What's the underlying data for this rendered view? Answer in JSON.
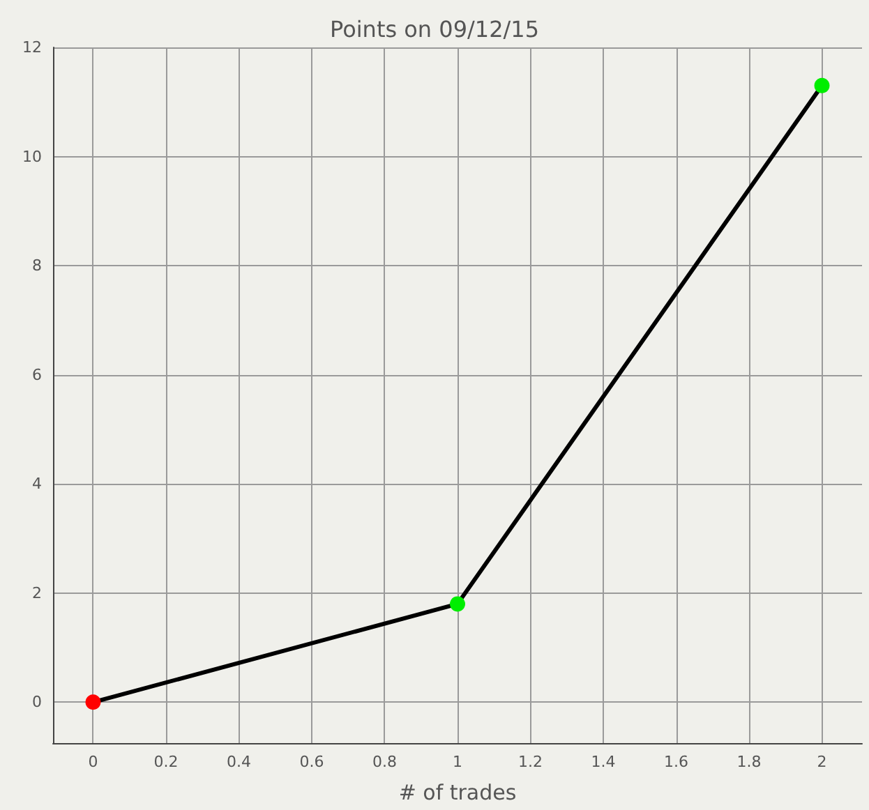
{
  "chart_data": {
    "type": "line",
    "title": "Points on 09/12/15",
    "xlabel": "# of trades",
    "x": [
      0,
      1,
      2
    ],
    "series": [
      {
        "color": "#000000",
        "colors": [
          "#ff0000",
          "#00ee00",
          "#00ee00"
        ],
        "values": [
          0,
          1.8,
          11.3
        ]
      }
    ],
    "xlim": [
      -0.11,
      2.11
    ],
    "xticks": [
      0,
      0.2,
      0.4,
      0.6,
      0.8,
      1,
      1.2,
      1.4,
      1.6,
      1.8,
      2
    ],
    "ylim": [
      -0.75,
      12
    ],
    "yticks": [
      0,
      2,
      4,
      6,
      8,
      10,
      12
    ],
    "grid": true,
    "marker": "circle",
    "line_style": "solid"
  }
}
